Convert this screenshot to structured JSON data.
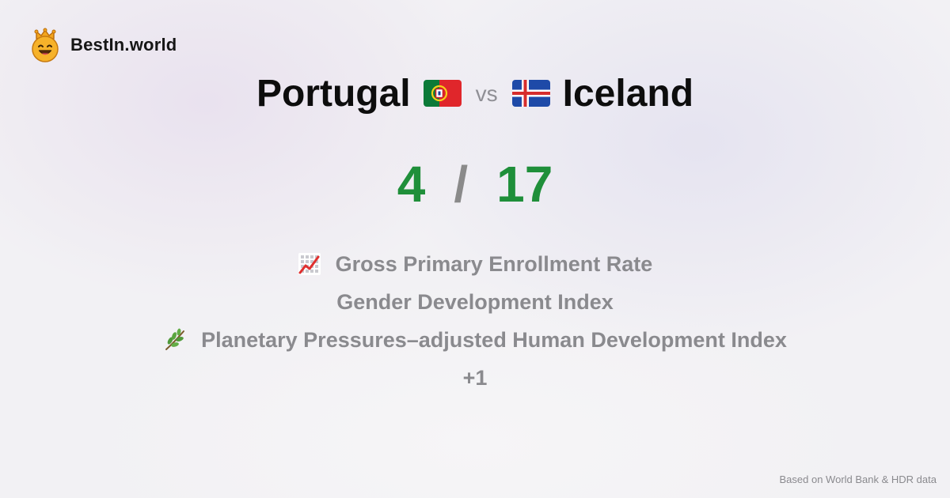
{
  "brand": {
    "name": "BestIn.world",
    "logo_icon": "crown-smiley-icon"
  },
  "comparison": {
    "left_country": "Portugal",
    "left_flag_icon": "portugal-flag-icon",
    "vs_label": "vs",
    "right_country": "Iceland",
    "right_flag_icon": "iceland-flag-icon"
  },
  "score": {
    "left": "4",
    "separator": "/",
    "right": "17",
    "color": "#1f8f3a"
  },
  "metrics": [
    {
      "label": "Gross Primary Enrollment Rate",
      "icon": "chart-increasing-icon"
    },
    {
      "label": "Gender Development Index",
      "icon": ""
    },
    {
      "label": "Planetary Pressures–adjusted Human Development Index",
      "icon": "herb-icon"
    }
  ],
  "more_label": "+1",
  "footer": {
    "source": "Based on World Bank & HDR data"
  }
}
